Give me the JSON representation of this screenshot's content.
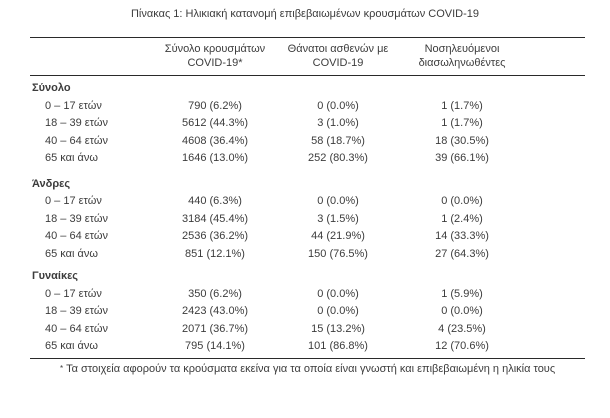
{
  "colors": {
    "text": "#3c3c3c",
    "rule": "#2a2a2a",
    "background": "#ffffff"
  },
  "title": "Πίνακας 1: Ηλικιακή κατανομή επιβεβαιωμένων κρουσμάτων COVID-19",
  "table": {
    "columns": [
      {
        "line1": "Σύνολο κρουσμάτων",
        "line2": "COVID-19*"
      },
      {
        "line1": "Θάνατοι ασθενών με",
        "line2": "COVID-19"
      },
      {
        "line1": "Νοσηλευόμενοι",
        "line2": "διασωληνωθέντες"
      }
    ],
    "sections": [
      {
        "label": "Σύνολο",
        "rows": [
          {
            "label": "0 – 17 ετών",
            "cells": [
              "790 (6.2%)",
              "0 (0.0%)",
              "1 (1.7%)"
            ]
          },
          {
            "label": "18 – 39 ετών",
            "cells": [
              "5612 (44.3%)",
              "3 (1.0%)",
              "1 (1.7%)"
            ]
          },
          {
            "label": "40 – 64 ετών",
            "cells": [
              "4608 (36.4%)",
              "58 (18.7%)",
              "18 (30.5%)"
            ]
          },
          {
            "label": "65 και άνω",
            "cells": [
              "1646 (13.0%)",
              "252 (80.3%)",
              "39 (66.1%)"
            ]
          }
        ]
      },
      {
        "label": "Άνδρες",
        "rows": [
          {
            "label": "0 – 17 ετών",
            "cells": [
              "440 (6.3%)",
              "0 (0.0%)",
              "0 (0.0%)"
            ]
          },
          {
            "label": "18 – 39 ετών",
            "cells": [
              "3184 (45.4%)",
              "3 (1.5%)",
              "1 (2.4%)"
            ]
          },
          {
            "label": "40 – 64 ετών",
            "cells": [
              "2536 (36.2%)",
              "44 (21.9%)",
              "14 (33.3%)"
            ]
          },
          {
            "label": "65 και άνω",
            "cells": [
              "851 (12.1%)",
              "150 (76.5%)",
              "27 (64.3%)"
            ]
          }
        ]
      },
      {
        "label": "Γυναίκες",
        "rows": [
          {
            "label": "0 – 17 ετών",
            "cells": [
              "350 (6.2%)",
              "0 (0.0%)",
              "1 (5.9%)"
            ]
          },
          {
            "label": "18 – 39 ετών",
            "cells": [
              "2423 (43.0%)",
              "0 (0.0%)",
              "0 (0.0%)"
            ]
          },
          {
            "label": "40 – 64 ετών",
            "cells": [
              "2071 (36.7%)",
              "15 (13.2%)",
              "4 (23.5%)"
            ]
          },
          {
            "label": "65 και άνω",
            "cells": [
              "795 (14.1%)",
              "101 (86.8%)",
              "12 (70.6%)"
            ]
          }
        ]
      }
    ]
  },
  "footnote": {
    "marker": "*",
    "text": "Τα στοιχεία αφορούν τα κρούσματα εκείνα για τα οποία είναι γνωστή και επιβεβαιωμένη η ηλικία τους"
  }
}
